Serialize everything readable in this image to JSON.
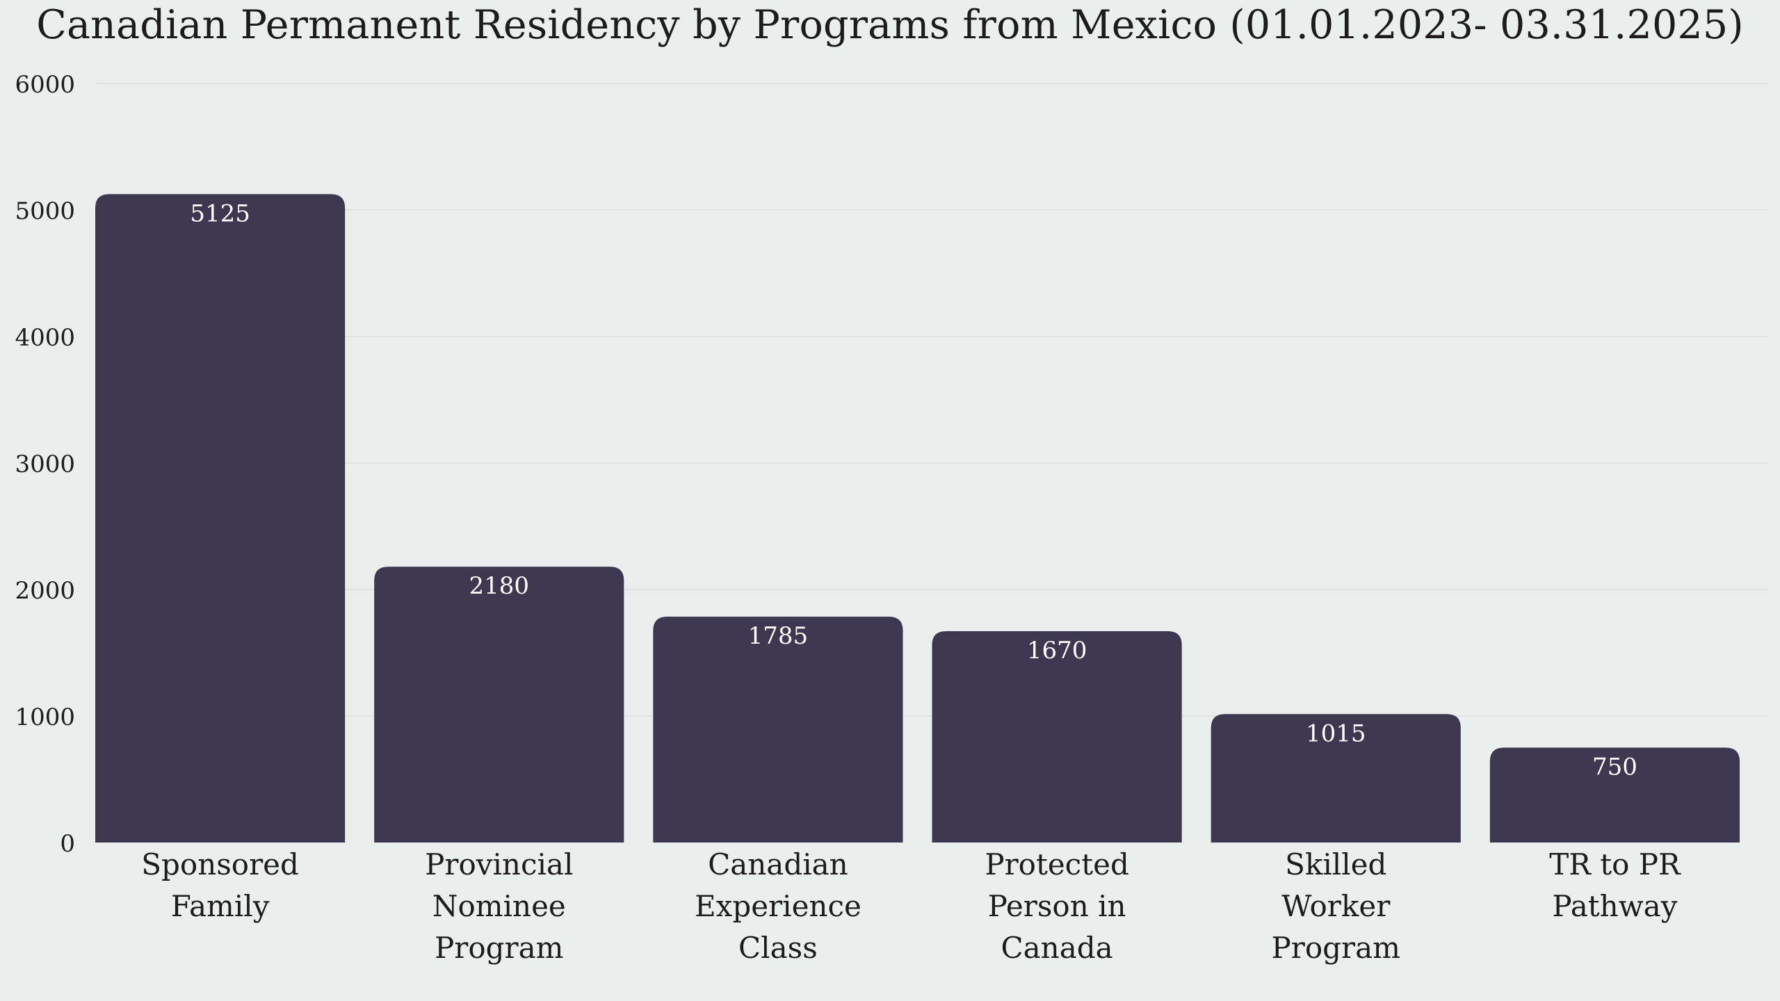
{
  "chart_data": {
    "type": "bar",
    "title": "Canadian Permanent Residency by Programs from Mexico (01.01.2023- 03.31.2025)",
    "xlabel": "",
    "ylabel": "",
    "categories": [
      [
        "Sponsored",
        "Family"
      ],
      [
        "Provincial",
        "Nominee",
        "Program"
      ],
      [
        "Canadian",
        "Experience",
        "Class"
      ],
      [
        "Protected",
        "Person in",
        "Canada"
      ],
      [
        "Skilled",
        "Worker",
        "Program"
      ],
      [
        "TR to PR",
        "Pathway"
      ]
    ],
    "values": [
      5125,
      2180,
      1785,
      1670,
      1015,
      750
    ],
    "data_labels": [
      "5125",
      "2180",
      "1785",
      "1670",
      "1015",
      "750"
    ],
    "yticks": [
      0,
      1000,
      2000,
      3000,
      4000,
      5000,
      6000
    ],
    "ytick_labels": [
      "0",
      "1000",
      "2000",
      "3000",
      "4000",
      "5000",
      "6000"
    ],
    "ylim": [
      0,
      6000
    ],
    "grid": true,
    "legend": "none",
    "colors": {
      "bar": "#3d3850",
      "background": "#eaeeed",
      "grid": "#d9dddc",
      "text": "#1c1c1c",
      "data_label": "#ffffff"
    }
  }
}
